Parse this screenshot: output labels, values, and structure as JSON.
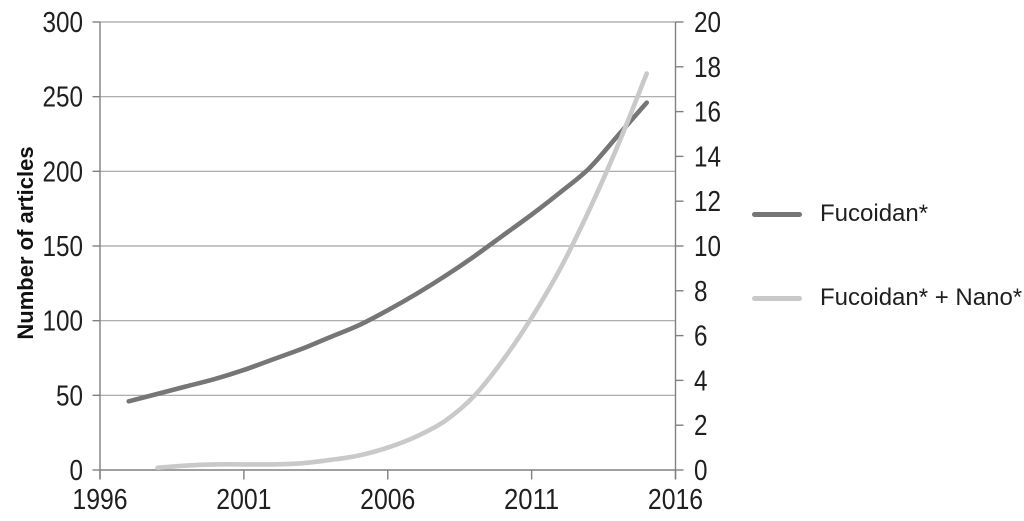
{
  "figure": {
    "background": "#ffffff",
    "text_color": "#1f1f1f",
    "axis_line_color": "#808080",
    "gridline_color": "#a2a2a2"
  },
  "chart_data": {
    "type": "line",
    "title": "",
    "xlabel": "",
    "x_axis": {
      "min": 1996,
      "max": 2016,
      "ticks": [
        1996,
        2001,
        2006,
        2011,
        2016
      ]
    },
    "y_axis_left": {
      "label": "Number of articles",
      "min": 0,
      "max": 300,
      "tick_step": 50,
      "ticks": [
        0,
        50,
        100,
        150,
        200,
        250,
        300
      ]
    },
    "y_axis_right": {
      "label": "",
      "min": 0,
      "max": 20,
      "tick_step": 2,
      "ticks": [
        0,
        2,
        4,
        6,
        8,
        10,
        12,
        14,
        16,
        18,
        20
      ]
    },
    "grid": {
      "horizontal": true,
      "vertical": false,
      "left_axis_step": 50
    },
    "legend_position": "right",
    "series": [
      {
        "name": "Fucoidan*",
        "axis": "left",
        "color": "#767676",
        "line_width": 4.6,
        "points": [
          [
            1997,
            46
          ],
          [
            1998,
            51
          ],
          [
            1999,
            56
          ],
          [
            2000,
            61
          ],
          [
            2001,
            67
          ],
          [
            2002,
            74
          ],
          [
            2003,
            81
          ],
          [
            2004,
            89
          ],
          [
            2005,
            97
          ],
          [
            2006,
            107
          ],
          [
            2007,
            118
          ],
          [
            2008,
            130
          ],
          [
            2009,
            143
          ],
          [
            2010,
            157
          ],
          [
            2011,
            171
          ],
          [
            2012,
            186
          ],
          [
            2013,
            202
          ],
          [
            2014,
            224
          ],
          [
            2015,
            246
          ]
        ]
      },
      {
        "name": "Fucoidan* + Nano*",
        "axis": "right",
        "color": "#c9c9c9",
        "line_width": 4.6,
        "points": [
          [
            1998,
            0.1
          ],
          [
            1999,
            0.2
          ],
          [
            2000,
            0.25
          ],
          [
            2001,
            0.25
          ],
          [
            2002,
            0.25
          ],
          [
            2003,
            0.3
          ],
          [
            2004,
            0.45
          ],
          [
            2005,
            0.65
          ],
          [
            2006,
            1.0
          ],
          [
            2007,
            1.5
          ],
          [
            2008,
            2.2
          ],
          [
            2009,
            3.3
          ],
          [
            2010,
            4.9
          ],
          [
            2011,
            6.8
          ],
          [
            2012,
            9.0
          ],
          [
            2013,
            11.6
          ],
          [
            2014,
            14.5
          ],
          [
            2015,
            17.7
          ]
        ]
      }
    ]
  }
}
